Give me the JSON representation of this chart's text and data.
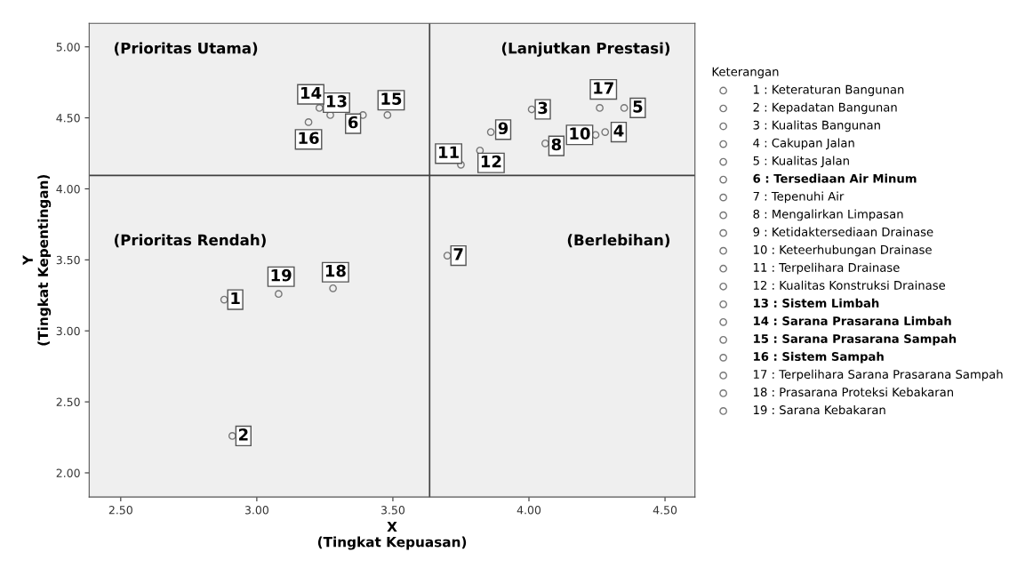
{
  "chart_data": {
    "type": "scatter",
    "xlabel": "X\n(Tingkat Kepuasan)",
    "ylabel": "Y\n(Tingkat Kepentingan)",
    "legend_title": "Keterangan",
    "legend": "right",
    "marker": "circle",
    "grid": false,
    "xlim": [
      2.384,
      4.61
    ],
    "ylim": [
      1.83,
      5.166
    ],
    "xticks": [
      {
        "value": 2.5,
        "label": "2.50"
      },
      {
        "value": 3.0,
        "label": "3.00"
      },
      {
        "value": 3.5,
        "label": "3.50"
      },
      {
        "value": 4.0,
        "label": "4.00"
      },
      {
        "value": 4.5,
        "label": "4.50"
      }
    ],
    "yticks": [
      {
        "value": 2.0,
        "label": "2.00"
      },
      {
        "value": 2.5,
        "label": "2.50"
      },
      {
        "value": 3.0,
        "label": "3.00"
      },
      {
        "value": 3.5,
        "label": "3.50"
      },
      {
        "value": 4.0,
        "label": "4.00"
      },
      {
        "value": 4.5,
        "label": "4.50"
      },
      {
        "value": 5.0,
        "label": "5.00"
      }
    ],
    "ref_lines": [
      {
        "axis": "x",
        "value": 3.635,
        "color": "#404040"
      },
      {
        "axis": "y",
        "value": 4.094,
        "color": "#404040"
      }
    ],
    "annotations": [
      "(Prioritas Utama)",
      "(Lanjutkan Prestasi)",
      "(Prioritas Rendah)",
      "(Berlebihan)",
      {
        "text": "1",
        "x": 2.88,
        "y": 3.22
      },
      {
        "text": "2",
        "x": 2.91,
        "y": 2.26
      },
      {
        "text": "3",
        "x": 4.01,
        "y": 4.56
      },
      {
        "text": "4",
        "x": 4.28,
        "y": 4.4
      },
      {
        "text": "5",
        "x": 4.35,
        "y": 4.57
      },
      {
        "text": "6",
        "x": 3.39,
        "y": 4.52
      },
      {
        "text": "7",
        "x": 3.7,
        "y": 3.53
      },
      {
        "text": "8",
        "x": 4.06,
        "y": 4.32
      },
      {
        "text": "9",
        "x": 3.86,
        "y": 4.4
      },
      {
        "text": "10",
        "x": 4.245,
        "y": 4.38
      },
      {
        "text": "11",
        "x": 3.75,
        "y": 4.17
      },
      {
        "text": "12",
        "x": 3.82,
        "y": 4.27
      },
      {
        "text": "13",
        "x": 3.27,
        "y": 4.52
      },
      {
        "text": "14",
        "x": 3.23,
        "y": 4.57
      },
      {
        "text": "15",
        "x": 3.48,
        "y": 4.52
      },
      {
        "text": "16",
        "x": 3.19,
        "y": 4.47
      },
      {
        "text": "17",
        "x": 4.26,
        "y": 4.57
      },
      {
        "text": "18",
        "x": 3.28,
        "y": 3.3
      },
      {
        "text": "19",
        "x": 3.08,
        "y": 3.26
      }
    ],
    "series": [
      {
        "name": "1 : Keteraturan Bangunan",
        "color": "#777777",
        "x": [
          2.88
        ],
        "values": [
          3.22
        ]
      },
      {
        "name": "2 : Kepadatan Bangunan",
        "color": "#777777",
        "x": [
          2.91
        ],
        "values": [
          2.26
        ]
      },
      {
        "name": "3 : Kualitas Bangunan",
        "color": "#777777",
        "x": [
          4.01
        ],
        "values": [
          4.56
        ]
      },
      {
        "name": "4 : Cakupan Jalan",
        "color": "#777777",
        "x": [
          4.28
        ],
        "values": [
          4.4
        ]
      },
      {
        "name": "5 : Kualitas Jalan",
        "color": "#777777",
        "x": [
          4.35
        ],
        "values": [
          4.57
        ]
      },
      {
        "name": "6 : Tersediaan Air Minum",
        "color": "#777777",
        "x": [
          3.39
        ],
        "values": [
          4.52
        ]
      },
      {
        "name": "7 : Tepenuhi Air",
        "color": "#777777",
        "x": [
          3.7
        ],
        "values": [
          3.53
        ]
      },
      {
        "name": "8 : Mengalirkan Limpasan",
        "color": "#777777",
        "x": [
          4.06
        ],
        "values": [
          4.32
        ]
      },
      {
        "name": "9 : Ketidaktersediaan Drainase",
        "color": "#777777",
        "x": [
          3.86
        ],
        "values": [
          4.4
        ]
      },
      {
        "name": "10 : Keteerhubungan Drainase",
        "color": "#777777",
        "x": [
          4.245
        ],
        "values": [
          4.38
        ]
      },
      {
        "name": "11 : Terpelihara Drainase",
        "color": "#777777",
        "x": [
          3.75
        ],
        "values": [
          4.17
        ]
      },
      {
        "name": "12 : Kualitas Konstruksi Drainase",
        "color": "#777777",
        "x": [
          3.82
        ],
        "values": [
          4.27
        ]
      },
      {
        "name": "13 : Sistem Limbah",
        "color": "#777777",
        "x": [
          3.27
        ],
        "values": [
          4.52
        ]
      },
      {
        "name": "14 : Sarana Prasarana Limbah",
        "color": "#777777",
        "x": [
          3.23
        ],
        "values": [
          4.57
        ]
      },
      {
        "name": "15 : Sarana Prasarana Sampah",
        "color": "#777777",
        "x": [
          3.48
        ],
        "values": [
          4.52
        ]
      },
      {
        "name": "16 : Sistem Sampah",
        "color": "#777777",
        "x": [
          3.19
        ],
        "values": [
          4.47
        ]
      },
      {
        "name": "17 : Terpelihara Sarana Prasarana Sampah",
        "color": "#777777",
        "x": [
          4.26
        ],
        "values": [
          4.57
        ]
      },
      {
        "name": "18 : Prasarana Proteksi Kebakaran",
        "color": "#777777",
        "x": [
          3.28
        ],
        "values": [
          3.3
        ]
      },
      {
        "name": "19 : Sarana Kebakaran",
        "color": "#777777",
        "x": [
          3.08
        ],
        "values": [
          3.26
        ]
      }
    ]
  }
}
